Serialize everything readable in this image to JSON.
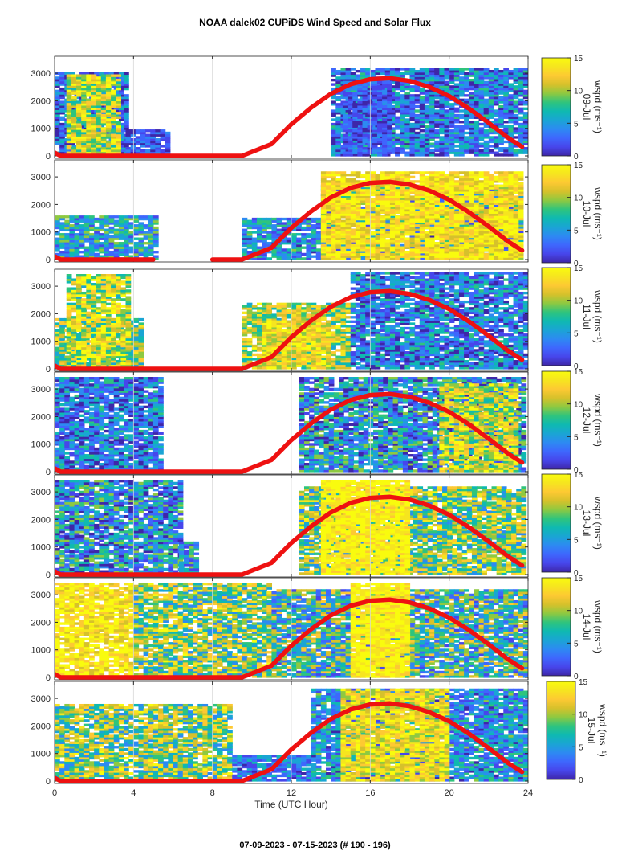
{
  "figure": {
    "title": "NOAA dalek02 CUPiDS Wind Speed and Solar Flux",
    "footer": "07-09-2023 - 07-15-2023   (# 190 - 196)",
    "xlabel": "Time (UTC Hour)"
  },
  "colors": {
    "solar_line": "#ee1111",
    "colormap": [
      "#3e26a8",
      "#4746eb",
      "#3e67fd",
      "#2d8af2",
      "#1aa5d4",
      "#0fb9b1",
      "#2fc47d",
      "#8ec941",
      "#d6c12b",
      "#fdc933",
      "#f6e51f",
      "#f9fb0e"
    ]
  },
  "chart_data": [
    {
      "type": "heatmap",
      "day_label": "09-Jul",
      "x": {
        "label": "",
        "range": [
          0,
          24
        ],
        "ticks": [
          0,
          4,
          8,
          12,
          16,
          20,
          24
        ],
        "tick_labels": []
      },
      "y": {
        "range": [
          0,
          3500
        ],
        "ticks": [
          0,
          1000,
          2000,
          3000
        ]
      },
      "colorbar": {
        "label": "wspd (ms⁻¹)",
        "range": [
          0,
          15
        ],
        "ticks": [
          0,
          5,
          10,
          15
        ]
      },
      "solar_flux": {
        "x": [
          0,
          0.3,
          9.5,
          11,
          12,
          13,
          14,
          15,
          16,
          17,
          18,
          19,
          20,
          21,
          22,
          23,
          23.7
        ],
        "y": [
          120,
          0,
          0,
          430,
          1150,
          1750,
          2250,
          2600,
          2780,
          2820,
          2720,
          2500,
          2170,
          1720,
          1200,
          650,
          330
        ]
      }
    },
    {
      "type": "heatmap",
      "day_label": "10-Jul",
      "x": {
        "label": "",
        "range": [
          0,
          24
        ],
        "ticks": [
          0,
          4,
          8,
          12,
          16,
          20,
          24
        ],
        "tick_labels": []
      },
      "y": {
        "range": [
          0,
          3500
        ],
        "ticks": [
          0,
          1000,
          2000,
          3000
        ]
      },
      "colorbar": {
        "label": "wspd (ms⁻¹)",
        "range": [
          0,
          15
        ],
        "ticks": [
          0,
          5,
          10,
          15
        ]
      },
      "solar_flux": {
        "x": [
          0,
          0.3,
          5,
          8,
          9.5,
          11,
          12,
          13,
          14,
          15,
          16,
          17,
          18,
          19,
          20,
          21,
          22,
          23,
          23.7
        ],
        "y": [
          120,
          0,
          0,
          0,
          0,
          430,
          1150,
          1750,
          2250,
          2600,
          2780,
          2820,
          2720,
          2500,
          2170,
          1720,
          1200,
          650,
          330
        ]
      }
    },
    {
      "type": "heatmap",
      "day_label": "11-Jul",
      "x": {
        "label": "",
        "range": [
          0,
          24
        ],
        "ticks": [
          0,
          4,
          8,
          12,
          16,
          20,
          24
        ],
        "tick_labels": []
      },
      "y": {
        "range": [
          0,
          3500
        ],
        "ticks": [
          0,
          1000,
          2000,
          3000
        ]
      },
      "colorbar": {
        "label": "wspd (ms⁻¹)",
        "range": [
          0,
          15
        ],
        "ticks": [
          0,
          5,
          10,
          15
        ]
      },
      "solar_flux": {
        "x": [
          0,
          0.3,
          9.5,
          11,
          12,
          13,
          14,
          15,
          16,
          17,
          18,
          19,
          20,
          21,
          22,
          23,
          23.7
        ],
        "y": [
          120,
          0,
          0,
          430,
          1150,
          1750,
          2250,
          2600,
          2780,
          2820,
          2720,
          2500,
          2170,
          1720,
          1200,
          650,
          330
        ]
      }
    },
    {
      "type": "heatmap",
      "day_label": "12-Jul",
      "x": {
        "label": "",
        "range": [
          0,
          24
        ],
        "ticks": [
          0,
          4,
          8,
          12,
          16,
          20,
          24
        ],
        "tick_labels": []
      },
      "y": {
        "range": [
          0,
          3500
        ],
        "ticks": [
          0,
          1000,
          2000,
          3000
        ]
      },
      "colorbar": {
        "label": "wspd (ms⁻¹)",
        "range": [
          0,
          15
        ],
        "ticks": [
          0,
          5,
          10,
          15
        ]
      },
      "solar_flux": {
        "x": [
          0,
          0.3,
          9.5,
          11,
          12,
          13,
          14,
          15,
          16,
          17,
          18,
          19,
          20,
          21,
          22,
          23,
          23.7
        ],
        "y": [
          120,
          0,
          0,
          430,
          1150,
          1750,
          2250,
          2600,
          2780,
          2820,
          2720,
          2500,
          2170,
          1720,
          1200,
          650,
          330
        ]
      }
    },
    {
      "type": "heatmap",
      "day_label": "13-Jul",
      "x": {
        "label": "",
        "range": [
          0,
          24
        ],
        "ticks": [
          0,
          4,
          8,
          12,
          16,
          20,
          24
        ],
        "tick_labels": []
      },
      "y": {
        "range": [
          0,
          3500
        ],
        "ticks": [
          0,
          1000,
          2000,
          3000
        ]
      },
      "colorbar": {
        "label": "wspd (ms⁻¹)",
        "range": [
          0,
          15
        ],
        "ticks": [
          0,
          5,
          10,
          15
        ]
      },
      "solar_flux": {
        "x": [
          0,
          0.3,
          9.5,
          11,
          12,
          13,
          14,
          15,
          16,
          17,
          18,
          19,
          20,
          21,
          22,
          23,
          23.7
        ],
        "y": [
          120,
          0,
          0,
          430,
          1150,
          1750,
          2250,
          2600,
          2780,
          2820,
          2720,
          2500,
          2170,
          1720,
          1200,
          650,
          330
        ]
      }
    },
    {
      "type": "heatmap",
      "day_label": "14-Jul",
      "x": {
        "label": "",
        "range": [
          0,
          24
        ],
        "ticks": [
          0,
          4,
          8,
          12,
          16,
          20,
          24
        ],
        "tick_labels": []
      },
      "y": {
        "range": [
          0,
          3500
        ],
        "ticks": [
          0,
          1000,
          2000,
          3000
        ]
      },
      "colorbar": {
        "label": "wspd (ms⁻¹)",
        "range": [
          0,
          15
        ],
        "ticks": [
          0,
          5,
          10,
          15
        ]
      },
      "solar_flux": {
        "x": [
          0,
          0.3,
          9.5,
          11,
          12,
          13,
          14,
          15,
          16,
          17,
          18,
          19,
          20,
          21,
          22,
          23,
          23.7
        ],
        "y": [
          120,
          0,
          0,
          430,
          1150,
          1750,
          2250,
          2600,
          2780,
          2820,
          2720,
          2500,
          2170,
          1720,
          1200,
          650,
          330
        ]
      }
    },
    {
      "type": "heatmap",
      "day_label": "15-Jul",
      "x": {
        "label": "Time (UTC Hour)",
        "range": [
          0,
          24
        ],
        "ticks": [
          0,
          4,
          8,
          12,
          16,
          20,
          24
        ],
        "tick_labels": [
          "0",
          "4",
          "8",
          "12",
          "16",
          "20",
          "24"
        ]
      },
      "y": {
        "range": [
          0,
          3500
        ],
        "ticks": [
          0,
          1000,
          2000,
          3000
        ]
      },
      "colorbar": {
        "label": "wspd (ms⁻¹)",
        "range": [
          0,
          15
        ],
        "ticks": [
          0,
          5,
          10,
          15
        ]
      },
      "solar_flux": {
        "x": [
          0,
          0.3,
          9.5,
          11,
          12,
          13,
          14,
          15,
          16,
          17,
          18,
          19,
          20,
          21,
          22,
          23,
          23.7
        ],
        "y": [
          120,
          0,
          0,
          430,
          1150,
          1750,
          2250,
          2600,
          2780,
          2820,
          2720,
          2500,
          2170,
          1720,
          1200,
          650,
          330
        ]
      }
    }
  ]
}
